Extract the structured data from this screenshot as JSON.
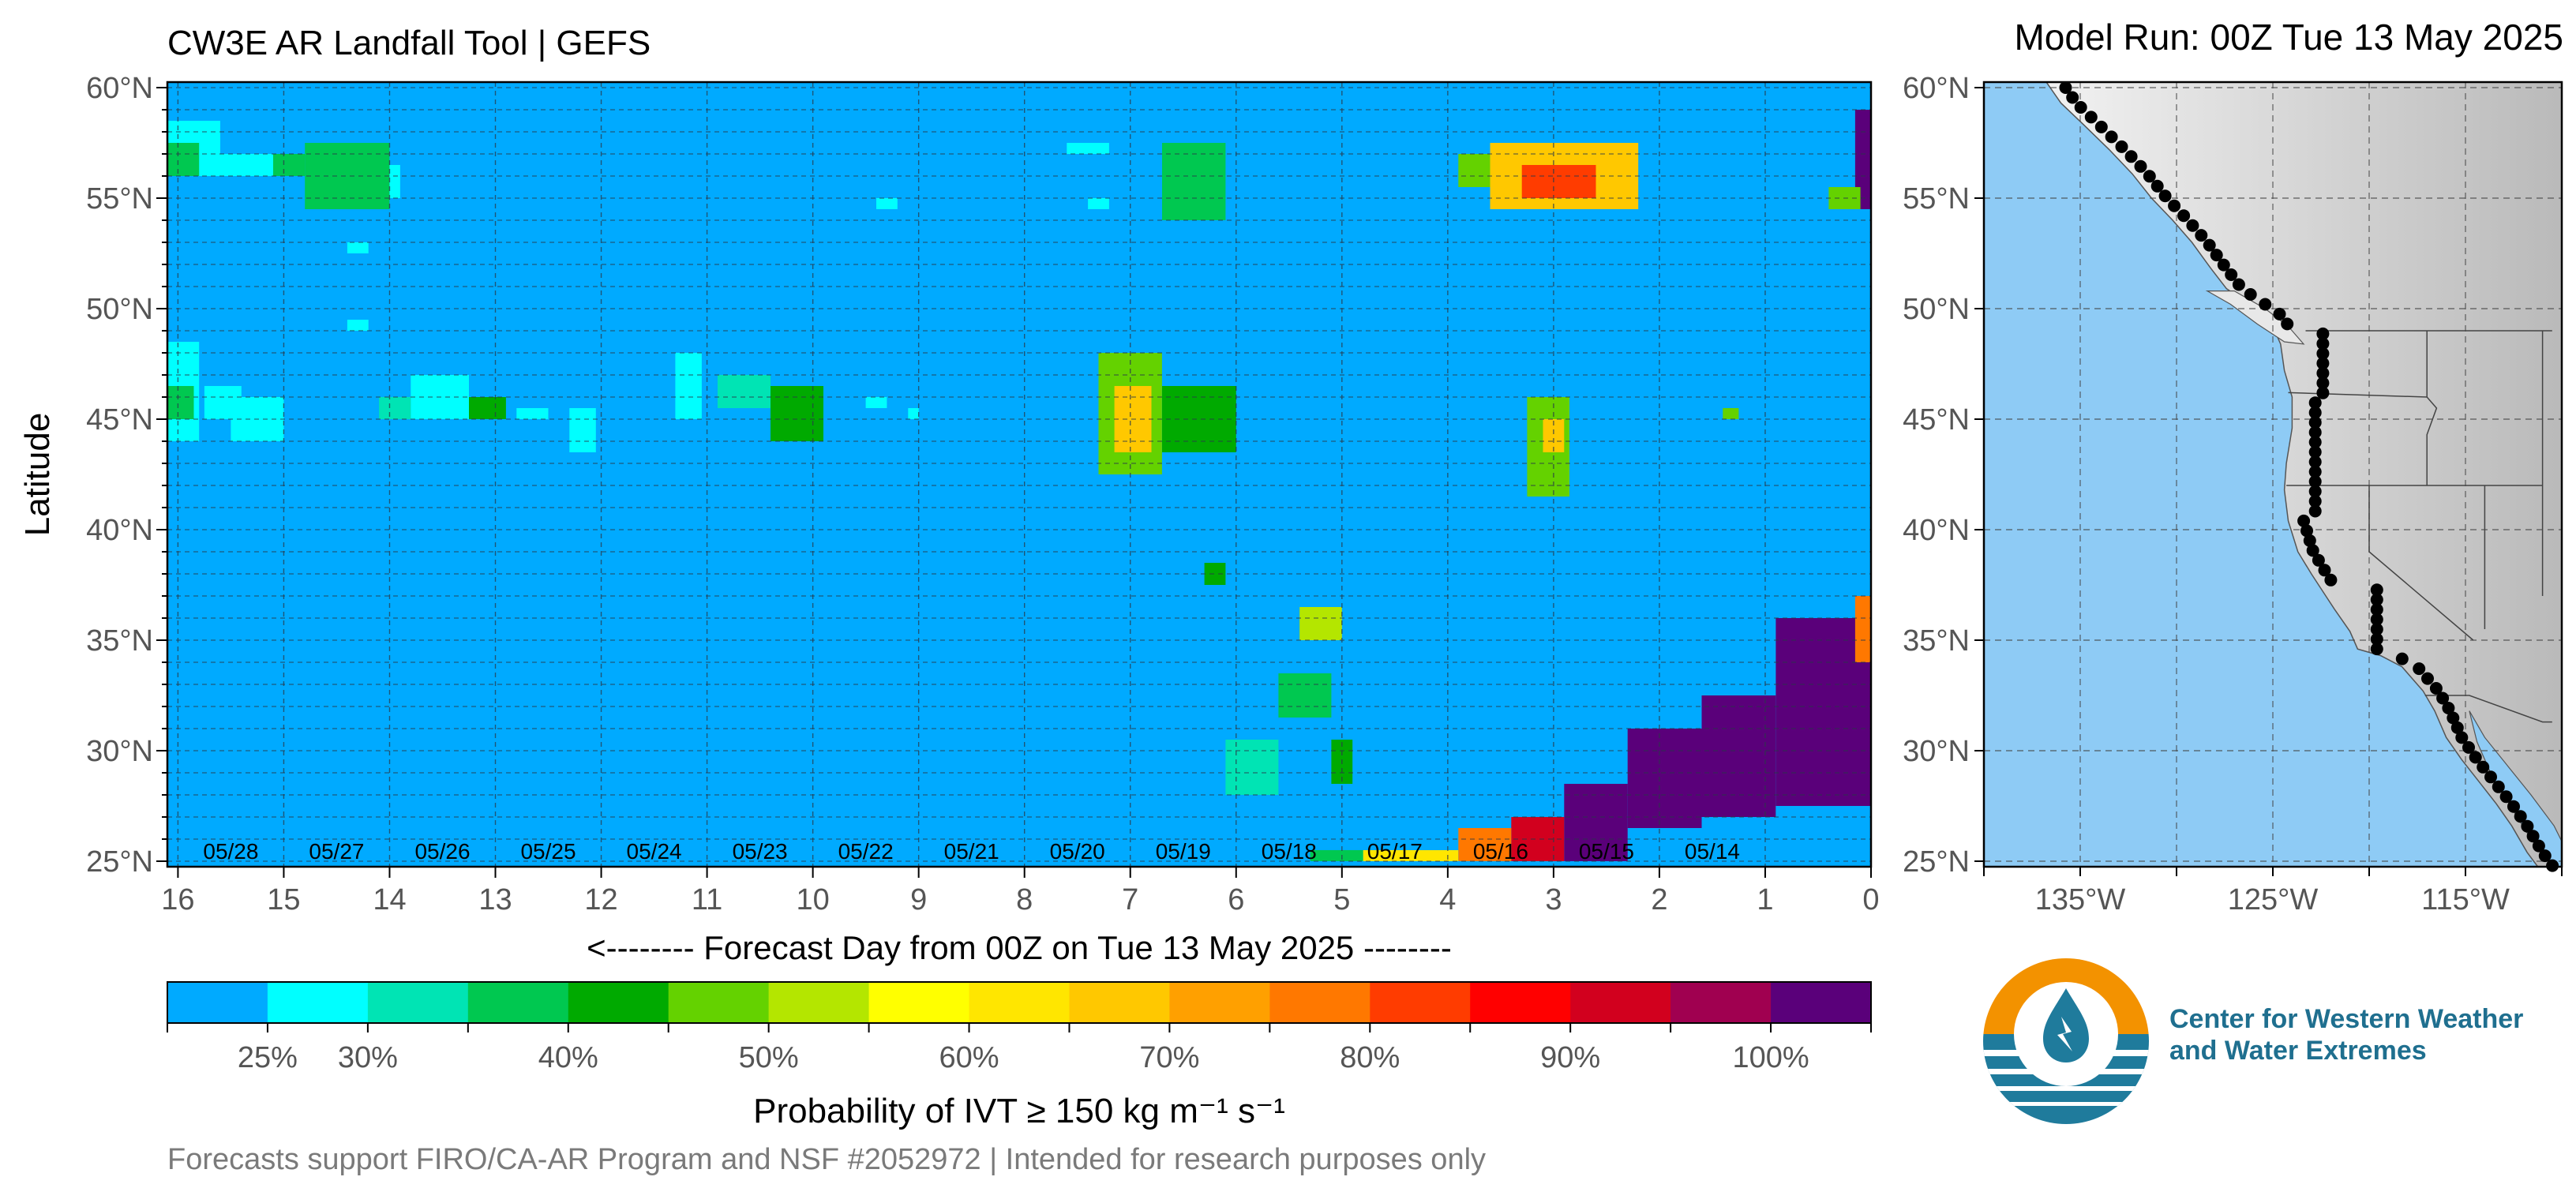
{
  "header": {
    "title": "CW3E AR Landfall Tool | GEFS",
    "model_run": "Model Run: 00Z Tue 13 May 2025"
  },
  "chart_data": [
    {
      "type": "heatmap",
      "title": "CW3E AR Landfall Tool | GEFS",
      "xlabel": "<-------- Forecast Day from 00Z on Tue 13 May 2025 --------",
      "ylabel": "Latitude",
      "x_reversed": true,
      "xlim": [
        0,
        16.1
      ],
      "ylim": [
        24.75,
        60.25
      ],
      "x_ticks": [
        0,
        1,
        2,
        3,
        4,
        5,
        6,
        7,
        8,
        9,
        10,
        11,
        12,
        13,
        14,
        15,
        16
      ],
      "x_tick_labels": [
        "0",
        "1",
        "2",
        "3",
        "4",
        "5",
        "6",
        "7",
        "8",
        "9",
        "10",
        "11",
        "12",
        "13",
        "14",
        "15",
        "16"
      ],
      "y_ticks": [
        25,
        30,
        35,
        40,
        45,
        50,
        55,
        60
      ],
      "y_tick_labels": [
        "25°N",
        "30°N",
        "35°N",
        "40°N",
        "45°N",
        "50°N",
        "55°N",
        "60°N"
      ],
      "date_labels": [
        {
          "day": 1.5,
          "label": "05/14"
        },
        {
          "day": 2.5,
          "label": "05/15"
        },
        {
          "day": 3.5,
          "label": "05/16"
        },
        {
          "day": 4.5,
          "label": "05/17"
        },
        {
          "day": 5.5,
          "label": "05/18"
        },
        {
          "day": 6.5,
          "label": "05/19"
        },
        {
          "day": 7.5,
          "label": "05/20"
        },
        {
          "day": 8.5,
          "label": "05/21"
        },
        {
          "day": 9.5,
          "label": "05/22"
        },
        {
          "day": 10.5,
          "label": "05/23"
        },
        {
          "day": 11.5,
          "label": "05/24"
        },
        {
          "day": 12.5,
          "label": "05/25"
        },
        {
          "day": 13.5,
          "label": "05/26"
        },
        {
          "day": 14.5,
          "label": "05/27"
        },
        {
          "day": 15.5,
          "label": "05/28"
        }
      ],
      "grid": true,
      "background_color": "#00aaff",
      "cell_size": {
        "day": 0.125,
        "lat": 0.5
      },
      "cells_note_unit": "probability %",
      "regions": [
        {
          "d0": 0.0,
          "d1": 0.9,
          "l0": 27.5,
          "l1": 36.0,
          "p": 100
        },
        {
          "d0": 0.9,
          "d1": 1.6,
          "l0": 27.0,
          "l1": 32.5,
          "p": 100
        },
        {
          "d0": 1.6,
          "d1": 2.3,
          "l0": 26.5,
          "l1": 31.0,
          "p": 100
        },
        {
          "d0": 2.3,
          "d1": 2.9,
          "l0": 25.0,
          "l1": 28.5,
          "p": 100
        },
        {
          "d0": 2.9,
          "d1": 3.4,
          "l0": 25.0,
          "l1": 27.0,
          "p": 90
        },
        {
          "d0": 3.4,
          "d1": 3.9,
          "l0": 25.0,
          "l1": 26.5,
          "p": 75
        },
        {
          "d0": 3.9,
          "d1": 4.8,
          "l0": 25.0,
          "l1": 25.5,
          "p": 60
        },
        {
          "d0": 4.8,
          "d1": 5.3,
          "l0": 25.0,
          "l1": 25.5,
          "p": 35
        },
        {
          "d0": 0.0,
          "d1": 0.15,
          "l0": 34.0,
          "l1": 37.0,
          "p": 75
        },
        {
          "d0": 0.0,
          "d1": 0.15,
          "l0": 54.5,
          "l1": 59.0,
          "p": 100
        },
        {
          "d0": 0.1,
          "d1": 0.4,
          "l0": 54.5,
          "l1": 55.5,
          "p": 45
        },
        {
          "d0": 2.2,
          "d1": 3.6,
          "l0": 54.5,
          "l1": 57.5,
          "p": 65
        },
        {
          "d0": 2.6,
          "d1": 3.3,
          "l0": 55.0,
          "l1": 56.5,
          "p": 80
        },
        {
          "d0": 3.6,
          "d1": 3.9,
          "l0": 55.5,
          "l1": 57.0,
          "p": 45
        },
        {
          "d0": 2.85,
          "d1": 3.25,
          "l0": 41.5,
          "l1": 46.0,
          "p": 45
        },
        {
          "d0": 2.9,
          "d1": 3.1,
          "l0": 43.5,
          "l1": 45.0,
          "p": 65
        },
        {
          "d0": 6.7,
          "d1": 7.3,
          "l0": 42.5,
          "l1": 48.0,
          "p": 45
        },
        {
          "d0": 6.8,
          "d1": 7.15,
          "l0": 43.5,
          "l1": 46.5,
          "p": 65
        },
        {
          "d0": 6.0,
          "d1": 6.7,
          "l0": 43.5,
          "l1": 46.5,
          "p": 42
        },
        {
          "d0": 4.9,
          "d1": 5.1,
          "l0": 28.5,
          "l1": 30.5,
          "p": 40
        },
        {
          "d0": 5.0,
          "d1": 5.4,
          "l0": 35.0,
          "l1": 36.5,
          "p": 50
        },
        {
          "d0": 5.1,
          "d1": 5.6,
          "l0": 31.5,
          "l1": 33.5,
          "p": 38
        },
        {
          "d0": 5.6,
          "d1": 6.1,
          "l0": 28.0,
          "l1": 30.5,
          "p": 32
        },
        {
          "d0": 6.1,
          "d1": 6.3,
          "l0": 37.5,
          "l1": 38.5,
          "p": 40
        },
        {
          "d0": 6.1,
          "d1": 6.7,
          "l0": 54.0,
          "l1": 57.5,
          "p": 38
        },
        {
          "d0": 7.2,
          "d1": 7.6,
          "l0": 57.0,
          "l1": 57.5,
          "p": 28
        },
        {
          "d0": 7.2,
          "d1": 7.4,
          "l0": 54.5,
          "l1": 55.0,
          "p": 28
        },
        {
          "d0": 9.9,
          "d1": 10.4,
          "l0": 44.0,
          "l1": 46.5,
          "p": 42
        },
        {
          "d0": 10.4,
          "d1": 10.9,
          "l0": 45.5,
          "l1": 47.0,
          "p": 30
        },
        {
          "d0": 11.05,
          "d1": 11.3,
          "l0": 45.0,
          "l1": 48.0,
          "p": 28
        },
        {
          "d0": 12.05,
          "d1": 12.3,
          "l0": 43.5,
          "l1": 45.5,
          "p": 28
        },
        {
          "d0": 12.5,
          "d1": 12.8,
          "l0": 45.0,
          "l1": 45.5,
          "p": 28
        },
        {
          "d0": 12.9,
          "d1": 13.25,
          "l0": 45.0,
          "l1": 46.0,
          "p": 42
        },
        {
          "d0": 13.25,
          "d1": 13.8,
          "l0": 45.0,
          "l1": 47.0,
          "p": 28
        },
        {
          "d0": 13.8,
          "d1": 14.1,
          "l0": 45.0,
          "l1": 46.0,
          "p": 33
        },
        {
          "d0": 13.9,
          "d1": 14.4,
          "l0": 55.0,
          "l1": 56.5,
          "p": 28
        },
        {
          "d0": 14.0,
          "d1": 14.8,
          "l0": 54.5,
          "l1": 57.5,
          "p": 38
        },
        {
          "d0": 14.8,
          "d1": 15.1,
          "l0": 56.0,
          "l1": 57.0,
          "p": 38
        },
        {
          "d0": 14.2,
          "d1": 14.4,
          "l0": 52.5,
          "l1": 53.0,
          "p": 28
        },
        {
          "d0": 14.2,
          "d1": 14.4,
          "l0": 49.0,
          "l1": 49.5,
          "p": 28
        },
        {
          "d0": 15.1,
          "d1": 15.6,
          "l0": 56.0,
          "l1": 57.0,
          "p": 28
        },
        {
          "d0": 15.6,
          "d1": 16.1,
          "l0": 56.0,
          "l1": 58.5,
          "p": 28
        },
        {
          "d0": 15.8,
          "d1": 16.1,
          "l0": 56.0,
          "l1": 57.5,
          "p": 38
        },
        {
          "d0": 15.4,
          "d1": 15.75,
          "l0": 45.0,
          "l1": 46.5,
          "p": 28
        },
        {
          "d0": 15.0,
          "d1": 15.5,
          "l0": 44.0,
          "l1": 46.0,
          "p": 28
        },
        {
          "d0": 15.8,
          "d1": 16.1,
          "l0": 44.0,
          "l1": 48.5,
          "p": 28
        },
        {
          "d0": 15.85,
          "d1": 16.1,
          "l0": 45.0,
          "l1": 46.5,
          "p": 38
        },
        {
          "d0": 1.25,
          "d1": 1.4,
          "l0": 45.0,
          "l1": 45.5,
          "p": 45
        },
        {
          "d0": 9.0,
          "d1": 9.1,
          "l0": 45.0,
          "l1": 45.5,
          "p": 28
        },
        {
          "d0": 9.3,
          "d1": 9.5,
          "l0": 45.5,
          "l1": 46.0,
          "p": 28
        },
        {
          "d0": 9.2,
          "d1": 9.4,
          "l0": 54.5,
          "l1": 55.0,
          "p": 28
        }
      ],
      "colorbar": {
        "label": "Probability of IVT ≥ 150 kg m⁻¹ s⁻¹",
        "bins": [
          20,
          25,
          30,
          35,
          40,
          45,
          50,
          55,
          60,
          65,
          70,
          75,
          80,
          85,
          90,
          95,
          100,
          105
        ],
        "colors": [
          "#00aaff",
          "#00ffff",
          "#00e4b4",
          "#00c850",
          "#00aa00",
          "#64d200",
          "#b4e600",
          "#ffff00",
          "#ffe600",
          "#ffc800",
          "#ffa000",
          "#ff7800",
          "#ff3c00",
          "#ff0000",
          "#d2001e",
          "#a00050",
          "#5a007a"
        ],
        "tick_labels": [
          {
            "v": 25,
            "label": "25%"
          },
          {
            "v": 30,
            "label": "30%"
          },
          {
            "v": 40,
            "label": "40%"
          },
          {
            "v": 50,
            "label": "50%"
          },
          {
            "v": 60,
            "label": "60%"
          },
          {
            "v": 70,
            "label": "70%"
          },
          {
            "v": 80,
            "label": "80%"
          },
          {
            "v": 90,
            "label": "90%"
          },
          {
            "v": 100,
            "label": "100%"
          }
        ]
      }
    },
    {
      "type": "map",
      "ylim": [
        24.75,
        60.25
      ],
      "xlim": [
        -140,
        -110
      ],
      "x_ticks": [
        -135,
        -125,
        -115
      ],
      "x_tick_labels": [
        "135°W",
        "125°W",
        "115°W"
      ],
      "y_ticks": [
        25,
        30,
        35,
        40,
        45,
        50,
        55,
        60
      ],
      "y_tick_labels": [
        "25°N",
        "30°N",
        "35°N",
        "40°N",
        "45°N",
        "50°N",
        "55°N",
        "60°N"
      ],
      "ocean_color": "#8ecbf5",
      "landfall_points_count": 80
    }
  ],
  "footer": {
    "text": "Forecasts support FIRO/CA-AR Program and NSF #2052972 | Intended for research purposes only",
    "org_line1": "Center for Western Weather",
    "org_line2": "and Water Extremes"
  }
}
